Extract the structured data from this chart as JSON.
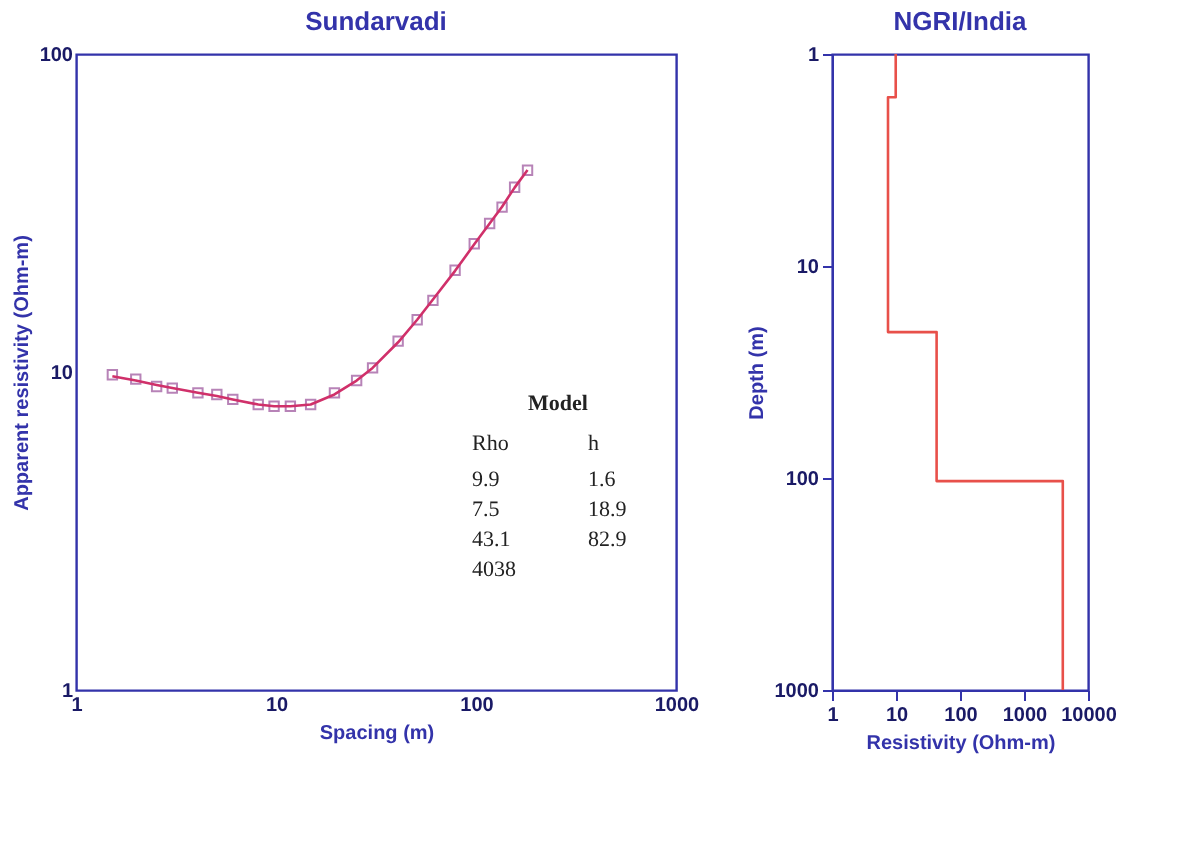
{
  "chart_data": [
    {
      "type": "scatter",
      "title": "Sundarvadi",
      "xlabel": "Spacing (m)",
      "ylabel": "Apparent resistivity (Ohm-m)",
      "log": "xy",
      "xlim": [
        1,
        1000
      ],
      "xticks": [
        1,
        10,
        100,
        1000
      ],
      "ylim": [
        1,
        100
      ],
      "yticks": [
        1,
        10,
        100
      ],
      "grid": false,
      "series": [
        {
          "marker": "square",
          "color": "#9a4f9a",
          "x": [
            1.52,
            1.99,
            2.53,
            3.03,
            4.07,
            5.06,
            6.08,
            8.15,
            9.78,
            11.8,
            14.9,
            19.6,
            25.3,
            30.4,
            40.8,
            50.8,
            60.9,
            78.6,
            98,
            117,
            135,
            156,
            181
          ],
          "values": [
            9.8,
            9.5,
            9.0,
            8.9,
            8.6,
            8.5,
            8.2,
            7.9,
            7.8,
            7.8,
            7.9,
            8.6,
            9.4,
            10.3,
            12.5,
            14.6,
            16.8,
            20.9,
            25.3,
            29.3,
            33.0,
            38.1,
            43.1
          ]
        },
        {
          "type": "line",
          "line_style": "solid",
          "color": "#d0306a",
          "x": [
            1.52,
            1.99,
            2.53,
            3.03,
            4.07,
            5.06,
            6.08,
            8.15,
            9.78,
            11.8,
            14.9,
            19.6,
            25.3,
            30.4,
            40.8,
            50.8,
            60.9,
            78.6,
            98,
            117,
            135,
            156,
            181
          ],
          "values": [
            9.7,
            9.4,
            9.1,
            8.9,
            8.6,
            8.4,
            8.2,
            7.9,
            7.8,
            7.8,
            7.9,
            8.5,
            9.4,
            10.3,
            12.4,
            14.6,
            16.9,
            20.8,
            25.2,
            29.3,
            33.1,
            38.0,
            43.2
          ]
        }
      ],
      "annotations": [
        "Model",
        "Rho",
        "h",
        "9.9",
        "1.6",
        "7.5",
        "18.9",
        "43.1",
        "82.9",
        "4038"
      ]
    },
    {
      "type": "line",
      "title": "NGRI/India",
      "xlabel": "Resistivity (Ohm-m)",
      "ylabel": "Depth (m)",
      "log": "xy",
      "xlim": [
        1,
        10000
      ],
      "xticks": [
        1,
        10,
        100,
        1000,
        10000
      ],
      "ylim": [
        1000,
        1
      ],
      "yticks": [
        1,
        10,
        100,
        1000
      ],
      "grid": false,
      "series": [
        {
          "line_style": "solid",
          "color": "#e8504a",
          "x": [
            9.9,
            9.9,
            7.5,
            7.5,
            43.1,
            43.1,
            4038,
            4038
          ],
          "values": [
            1,
            1.6,
            1.6,
            20.5,
            20.5,
            103.4,
            103.4,
            1000
          ]
        }
      ]
    }
  ]
}
